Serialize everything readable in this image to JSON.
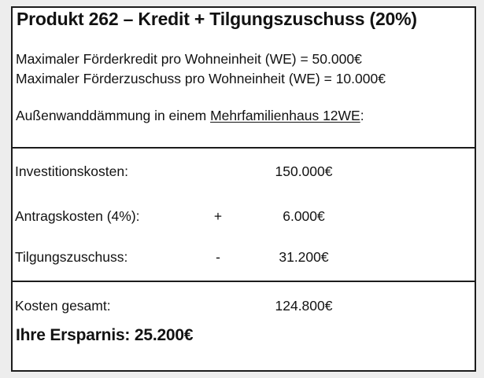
{
  "document": {
    "title": "Produkt 262 – Kredit + Tilgungszuschuss (20%)",
    "intro_lines": [
      "Maximaler Förderkredit pro Wohneinheit (WE) = 50.000€",
      "Maximaler Förderzuschuss pro Wohneinheit (WE) = 10.000€"
    ],
    "scenario": {
      "prefix": "Außenwanddämmung in einem ",
      "underlined": "Mehrfamilienhaus 12WE",
      "suffix": ":"
    },
    "calculation": {
      "rows": [
        {
          "label": "Investitionskosten:",
          "operator": "",
          "value": "150.000€"
        },
        {
          "label": "Antragskosten (4%):",
          "operator": "+",
          "value": "6.000€"
        },
        {
          "label": "Tilgungszuschuss:",
          "operator": "-",
          "value": "31.200€"
        }
      ],
      "total_row": {
        "label": "Kosten gesamt:",
        "value": "124.800€"
      },
      "savings_line": "Ihre Ersparnis: 25.200€"
    },
    "colors": {
      "border": "#1c1c1c",
      "text": "#121212",
      "page_background": "#ededed",
      "panel_background": "#ffffff"
    }
  }
}
